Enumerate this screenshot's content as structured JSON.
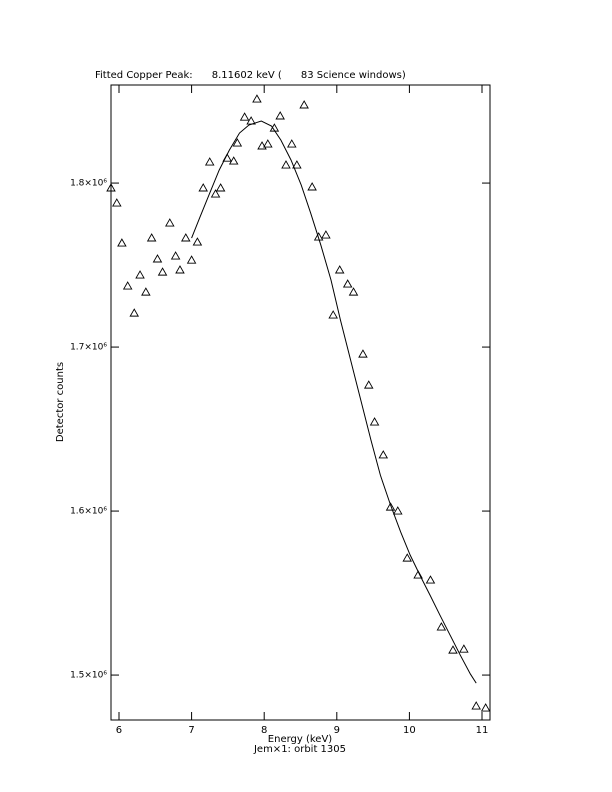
{
  "chart_data": {
    "type": "scatter",
    "title": "Fitted Copper Peak:      8.11602 keV (      83 Science windows)",
    "x_label": "Energy (keV)",
    "subtitle": "Jem×1: orbit 1305",
    "y_label": "Detector counts",
    "xlim": [
      5.89,
      11.11
    ],
    "ylim": [
      1472600,
      1859800
    ],
    "xticks": [
      6,
      7,
      8,
      9,
      10,
      11
    ],
    "yticks": [
      {
        "value": 1500000,
        "label": "1.5×10⁶"
      },
      {
        "value": 1600000,
        "label": "1.6×10⁶"
      },
      {
        "value": 1700000,
        "label": "1.7×10⁶"
      },
      {
        "value": 1800000,
        "label": "1.8×10⁶"
      }
    ],
    "grid": false,
    "series": [
      {
        "marker": "triangle",
        "color": "#000000",
        "x": [
          5.89,
          5.97,
          6.04,
          6.12,
          6.21,
          6.29,
          6.37,
          6.45,
          6.53,
          6.6,
          6.7,
          6.78,
          6.84,
          6.92,
          7.0,
          7.08,
          7.16,
          7.25,
          7.33,
          7.4,
          7.49,
          7.58,
          7.63,
          7.73,
          7.82,
          7.9,
          7.97,
          8.05,
          8.14,
          8.22,
          8.3,
          8.38,
          8.45,
          8.55,
          8.66,
          8.75,
          8.85,
          8.95,
          9.04,
          9.15,
          9.23,
          9.36,
          9.44,
          9.52,
          9.64,
          9.74,
          9.84,
          9.97,
          10.12,
          10.29,
          10.44,
          10.6,
          10.75,
          10.92,
          11.05
        ],
        "values": [
          1797000,
          1787800,
          1763400,
          1737200,
          1720700,
          1743900,
          1733500,
          1766500,
          1753700,
          1745700,
          1775600,
          1755500,
          1747000,
          1766500,
          1753000,
          1764000,
          1797000,
          1812800,
          1793300,
          1797000,
          1815200,
          1813400,
          1824400,
          1840200,
          1837800,
          1851200,
          1822600,
          1823800,
          1833500,
          1840900,
          1811000,
          1823800,
          1811000,
          1847600,
          1797600,
          1767100,
          1768300,
          1719500,
          1747000,
          1738400,
          1733500,
          1695700,
          1676800,
          1654300,
          1634200,
          1602400,
          1600000,
          1571300,
          1561000,
          1557900,
          1529300,
          1515200,
          1515800,
          1481100,
          1479900
        ]
      },
      {
        "marker": "line",
        "color": "#000000",
        "x": [
          7.0,
          7.11,
          7.25,
          7.38,
          7.52,
          7.66,
          7.79,
          7.96,
          8.1,
          8.23,
          8.37,
          8.51,
          8.64,
          8.78,
          8.92,
          9.05,
          9.19,
          9.33,
          9.47,
          9.6,
          9.74,
          9.88,
          10.01,
          10.15,
          10.29,
          10.42,
          10.56,
          10.7,
          10.84,
          10.92
        ],
        "values": [
          1766500,
          1778700,
          1793900,
          1807900,
          1820100,
          1830500,
          1835400,
          1837800,
          1834800,
          1826200,
          1814000,
          1798800,
          1781700,
          1762200,
          1740900,
          1716500,
          1692100,
          1667700,
          1643300,
          1621900,
          1603700,
          1587200,
          1573200,
          1560400,
          1548200,
          1536600,
          1524400,
          1512200,
          1500600,
          1495100
        ]
      }
    ]
  }
}
